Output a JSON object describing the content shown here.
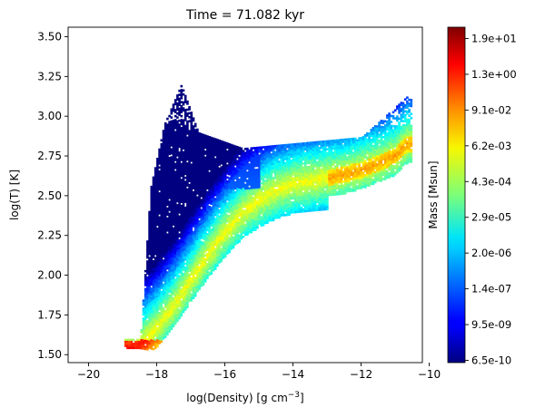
{
  "chart_data": {
    "type": "heatmap",
    "title": "Time = 71.082 kyr",
    "xlabel": "log(Density) [g cm",
    "xlabel_sup": "−3",
    "xlabel_tail": "]",
    "ylabel": "log(T) [K]",
    "xlim": [
      -20.6,
      -10.2
    ],
    "ylim": [
      1.45,
      3.56
    ],
    "xticks": [
      -20,
      -18,
      -16,
      -14,
      -12,
      -10
    ],
    "xtick_labels": [
      "−20",
      "−18",
      "−16",
      "−14",
      "−12",
      "−10"
    ],
    "yticks": [
      1.5,
      1.75,
      2.0,
      2.25,
      2.5,
      2.75,
      3.0,
      3.25,
      3.5
    ],
    "ytick_labels": [
      "1.50",
      "1.75",
      "2.00",
      "2.25",
      "2.50",
      "2.75",
      "3.00",
      "3.25",
      "3.50"
    ],
    "colormap": "jet",
    "colorbar": {
      "label": "Mass [Msun]",
      "scale": "log",
      "range": [
        "6.5e-10",
        "1.9e+01"
      ],
      "tick_labels": [
        "6.5e-10",
        "9.5e-09",
        "1.4e-07",
        "2.0e-06",
        "2.9e-05",
        "4.3e-04",
        "6.2e-03",
        "9.1e-02",
        "1.3e+00",
        "1.9e+01"
      ]
    },
    "grid": false,
    "distribution_ridge": {
      "x": [
        -18.6,
        -18.0,
        -17.5,
        -17.0,
        -16.5,
        -16.0,
        -15.5,
        -15.0,
        -14.5,
        -14.0,
        -13.5,
        -13.0,
        -12.5,
        -12.0,
        -11.5,
        -11.0,
        -10.7
      ],
      "y": [
        1.55,
        1.68,
        1.82,
        1.98,
        2.14,
        2.28,
        2.4,
        2.48,
        2.54,
        2.58,
        2.6,
        2.62,
        2.64,
        2.67,
        2.71,
        2.76,
        2.83
      ]
    }
  }
}
